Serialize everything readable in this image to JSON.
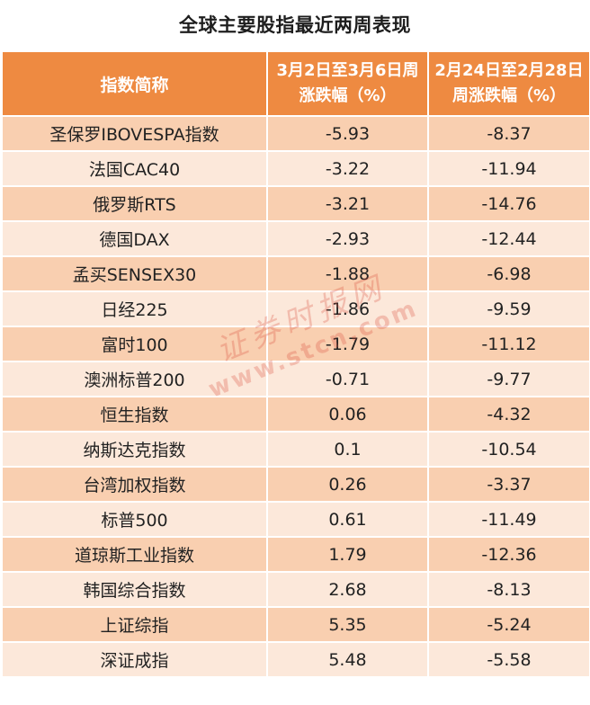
{
  "title": "全球主要股指最近两周表现",
  "watermark": {
    "line1": "证券时报网",
    "line2": "www.stcn.com",
    "color": "#d94c3c"
  },
  "colors": {
    "header_bg": "#ee8a41",
    "row_dark": "#f9cfb0",
    "row_light": "#fce8da"
  },
  "chart_data": {
    "type": "table",
    "title": "全球主要股指最近两周表现",
    "columns": [
      {
        "line1": "指数简称",
        "line2": ""
      },
      {
        "line1": "3月2日至3月6日周",
        "line2": "涨跌幅（%）"
      },
      {
        "line1": "2月24日至2月28日",
        "line2": "周涨跌幅（%）"
      }
    ],
    "rows": [
      {
        "name": "圣保罗IBOVESPA指数",
        "week1": "-5.93",
        "week2": "-8.37"
      },
      {
        "name": "法国CAC40",
        "week1": "-3.22",
        "week2": "-11.94"
      },
      {
        "name": "俄罗斯RTS",
        "week1": "-3.21",
        "week2": "-14.76"
      },
      {
        "name": "德国DAX",
        "week1": "-2.93",
        "week2": "-12.44"
      },
      {
        "name": "孟买SENSEX30",
        "week1": "-1.88",
        "week2": "-6.98"
      },
      {
        "name": "日经225",
        "week1": "-1.86",
        "week2": "-9.59"
      },
      {
        "name": "富时100",
        "week1": "-1.79",
        "week2": "-11.12"
      },
      {
        "name": "澳洲标普200",
        "week1": "-0.71",
        "week2": "-9.77"
      },
      {
        "name": "恒生指数",
        "week1": "0.06",
        "week2": "-4.32"
      },
      {
        "name": "纳斯达克指数",
        "week1": "0.1",
        "week2": "-10.54"
      },
      {
        "name": "台湾加权指数",
        "week1": "0.26",
        "week2": "-3.37"
      },
      {
        "name": "标普500",
        "week1": "0.61",
        "week2": "-11.49"
      },
      {
        "name": "道琼斯工业指数",
        "week1": "1.79",
        "week2": "-12.36"
      },
      {
        "name": "韩国综合指数",
        "week1": "2.68",
        "week2": "-8.13"
      },
      {
        "name": "上证综指",
        "week1": "5.35",
        "week2": "-5.24"
      },
      {
        "name": "深证成指",
        "week1": "5.48",
        "week2": "-5.58"
      }
    ]
  }
}
